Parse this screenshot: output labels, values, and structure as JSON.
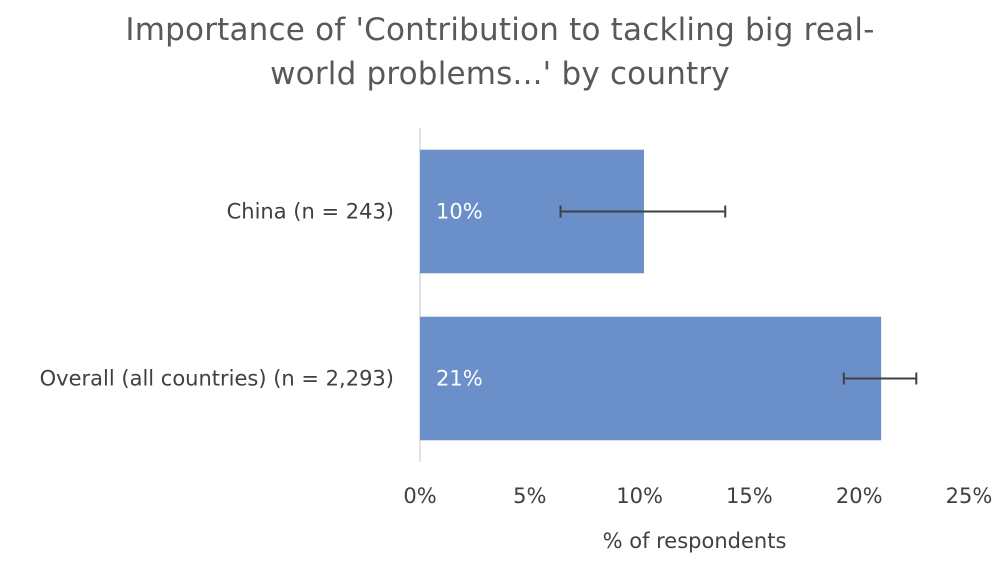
{
  "chart_data": {
    "type": "bar",
    "orientation": "horizontal",
    "title_lines": [
      "Importance of 'Contribution to tackling big real-",
      "world problems...' by country"
    ],
    "categories": [
      "China (n = 243)",
      "Overall (all countries) (n = 2,293)"
    ],
    "values": [
      10.2,
      21.0
    ],
    "data_labels": [
      "10%",
      "21%"
    ],
    "error_bars": [
      {
        "low": 6.4,
        "high": 13.9
      },
      {
        "low": 19.3,
        "high": 22.6
      }
    ],
    "xlabel": "% of respondents",
    "ylabel": "",
    "xlim": [
      0,
      25
    ],
    "x_ticks": [
      0,
      5,
      10,
      15,
      20,
      25
    ],
    "x_tick_labels": [
      "0%",
      "5%",
      "10%",
      "15%",
      "20%",
      "25%"
    ],
    "grid": false,
    "legend": "none",
    "colors": {
      "bar": "#6a8fc9",
      "error_bar": "#404040",
      "axis": "#d9d9d9"
    }
  }
}
